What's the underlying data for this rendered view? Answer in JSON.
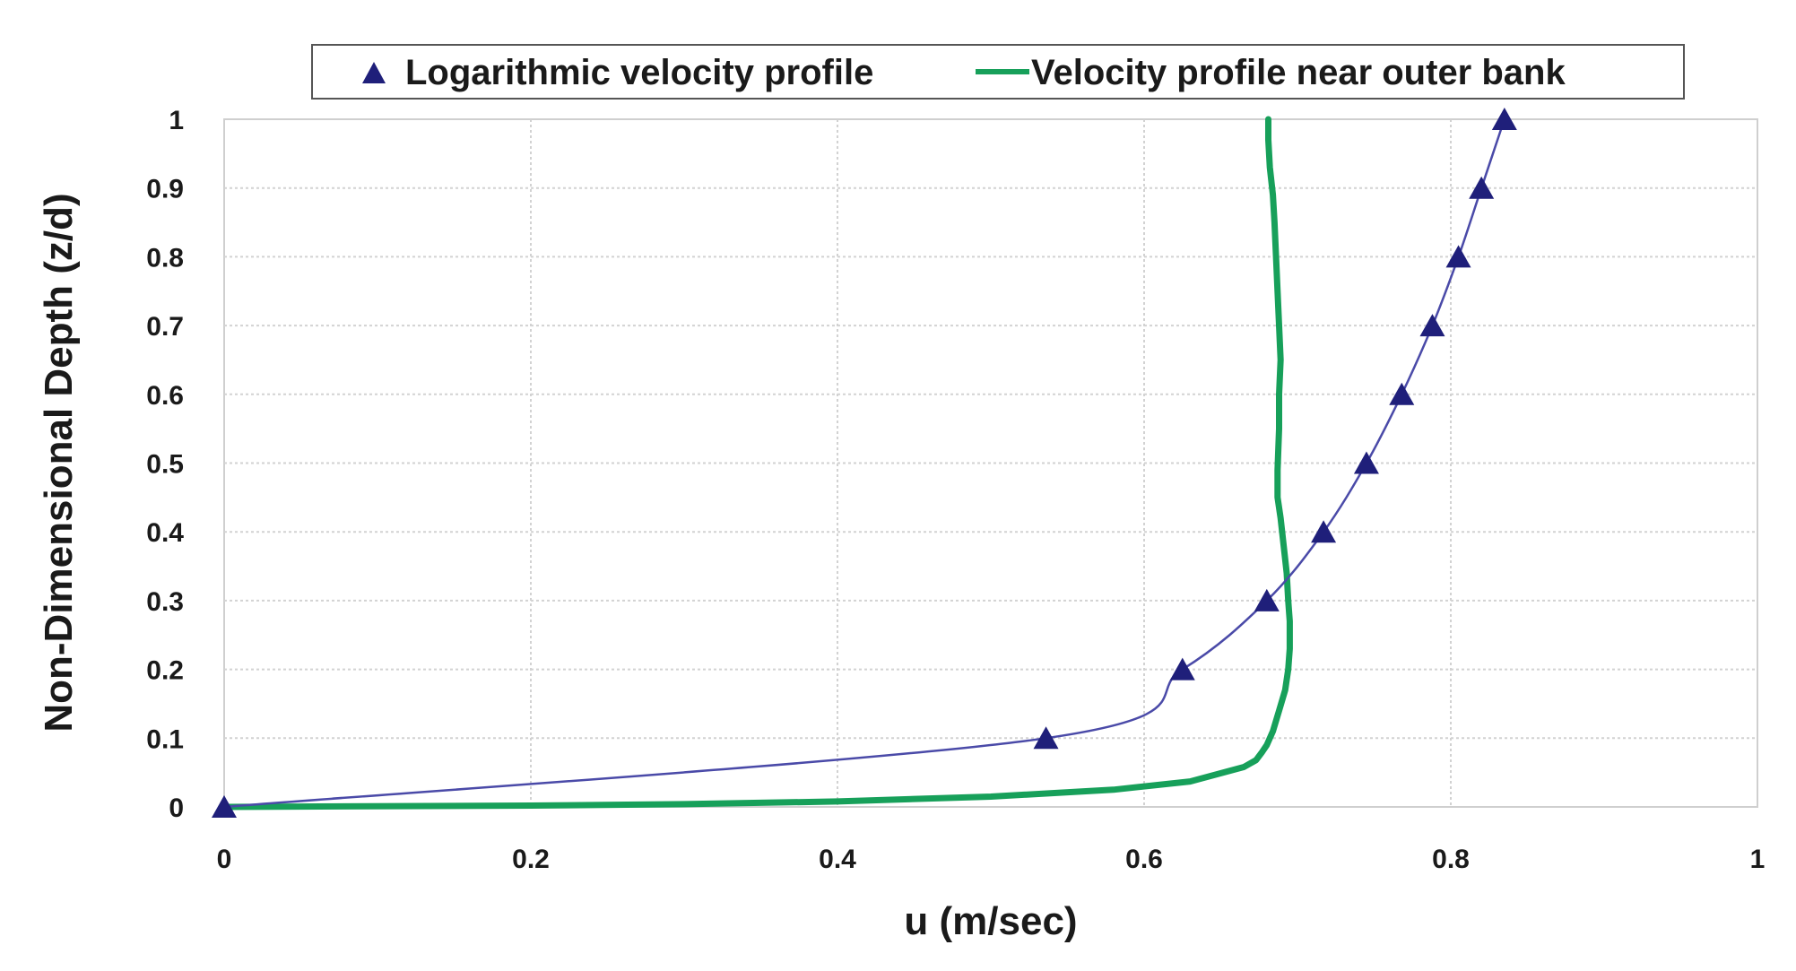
{
  "chart_data": {
    "type": "line",
    "title": "",
    "xlabel": "u (m/sec)",
    "ylabel": "Non-Dimensional Depth (z/d)",
    "xlim": [
      0,
      1
    ],
    "ylim": [
      0,
      1
    ],
    "grid": true,
    "legend_position": "top",
    "x_ticks": [
      "0",
      "0.2",
      "0.4",
      "0.6",
      "0.8",
      "1"
    ],
    "y_ticks": [
      "0",
      "0.1",
      "0.2",
      "0.3",
      "0.4",
      "0.5",
      "0.6",
      "0.7",
      "0.8",
      "0.9",
      "1"
    ],
    "series": [
      {
        "name": "Logarithmic velocity profile",
        "style": "line-with-triangles",
        "color": "#1f1f7a",
        "line_color": "#4a4aa8",
        "points": [
          [
            0.0,
            0.0
          ],
          [
            0.536,
            0.1
          ],
          [
            0.625,
            0.2
          ],
          [
            0.68,
            0.3
          ],
          [
            0.717,
            0.4
          ],
          [
            0.745,
            0.5
          ],
          [
            0.768,
            0.6
          ],
          [
            0.788,
            0.7
          ],
          [
            0.805,
            0.8
          ],
          [
            0.82,
            0.9
          ],
          [
            0.835,
            1.0
          ]
        ]
      },
      {
        "name": "Velocity profile near outer bank",
        "style": "thick-line",
        "color": "#17a05a",
        "points": [
          [
            0.0,
            0.0
          ],
          [
            0.2,
            0.002
          ],
          [
            0.3,
            0.004
          ],
          [
            0.4,
            0.008
          ],
          [
            0.5,
            0.015
          ],
          [
            0.58,
            0.025
          ],
          [
            0.63,
            0.037
          ],
          [
            0.655,
            0.052
          ],
          [
            0.665,
            0.058
          ],
          [
            0.673,
            0.068
          ],
          [
            0.677,
            0.08
          ],
          [
            0.68,
            0.09
          ],
          [
            0.684,
            0.11
          ],
          [
            0.688,
            0.14
          ],
          [
            0.692,
            0.17
          ],
          [
            0.694,
            0.2
          ],
          [
            0.695,
            0.23
          ],
          [
            0.695,
            0.27
          ],
          [
            0.694,
            0.3
          ],
          [
            0.693,
            0.34
          ],
          [
            0.691,
            0.38
          ],
          [
            0.689,
            0.42
          ],
          [
            0.687,
            0.45
          ],
          [
            0.687,
            0.49
          ],
          [
            0.688,
            0.55
          ],
          [
            0.688,
            0.6
          ],
          [
            0.689,
            0.65
          ],
          [
            0.688,
            0.7
          ],
          [
            0.687,
            0.75
          ],
          [
            0.686,
            0.8
          ],
          [
            0.685,
            0.85
          ],
          [
            0.684,
            0.89
          ],
          [
            0.682,
            0.93
          ],
          [
            0.681,
            0.97
          ],
          [
            0.681,
            1.0
          ]
        ]
      }
    ]
  }
}
